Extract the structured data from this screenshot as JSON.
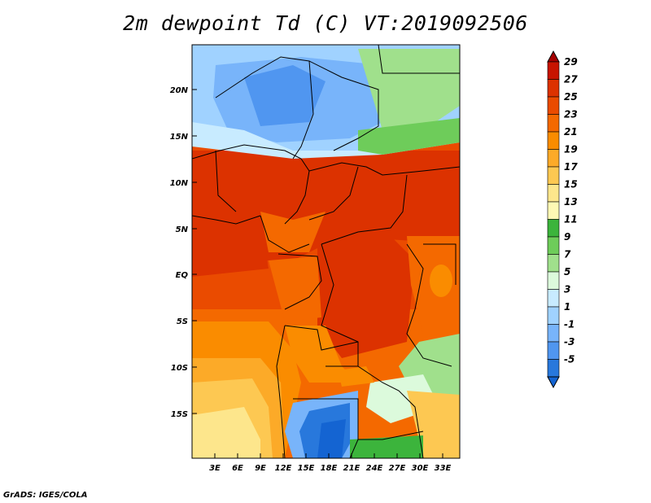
{
  "title": "2m dewpoint Td (C) VT:2019092506",
  "footer": "GrADS: IGES/COLA",
  "lat_labels": [
    "20N",
    "15N",
    "10N",
    "5N",
    "EQ",
    "5S",
    "10S",
    "15S"
  ],
  "lon_labels": [
    "3E",
    "6E",
    "9E",
    "12E",
    "15E",
    "18E",
    "21E",
    "24E",
    "27E",
    "30E",
    "33E"
  ],
  "colorbar": {
    "labels": [
      "29",
      "27",
      "25",
      "23",
      "21",
      "19",
      "17",
      "15",
      "13",
      "11",
      "9",
      "7",
      "5",
      "3",
      "1",
      "-1",
      "-3",
      "-5"
    ],
    "colors": [
      "#a50000",
      "#c81400",
      "#dc3200",
      "#ea4b00",
      "#f46900",
      "#fa8c00",
      "#fcaa28",
      "#fdc852",
      "#fde68c",
      "#fff8b4",
      "#3cb43c",
      "#6ecc5a",
      "#a0e08c",
      "#dcfadc",
      "#c8ebff",
      "#a0d2ff",
      "#78b4fa",
      "#5096f0",
      "#2878dc",
      "#1464d2"
    ]
  },
  "map": {
    "region": "Central Africa",
    "lat_range": [
      "19S",
      "24N"
    ],
    "lon_range": [
      "0E",
      "35E"
    ],
    "variable": "2m dewpoint",
    "units": "C"
  }
}
